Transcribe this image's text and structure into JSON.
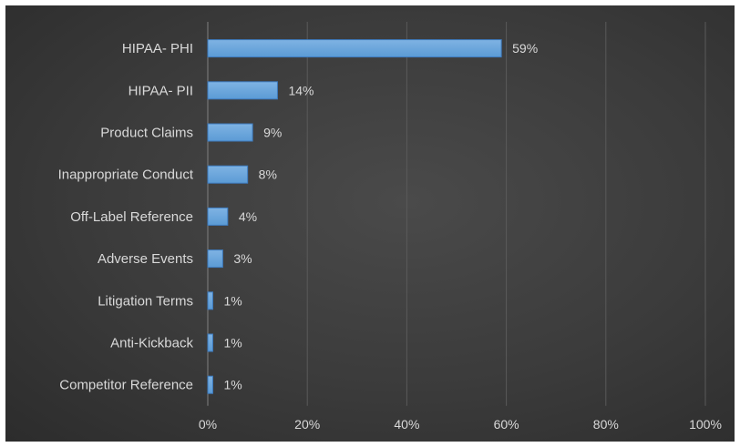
{
  "chart_data": {
    "type": "bar",
    "orientation": "horizontal",
    "categories": [
      "HIPAA- PHI",
      "HIPAA- PII",
      "Product Claims",
      "Inappropriate Conduct",
      "Off-Label Reference",
      "Adverse Events",
      "Litigation Terms",
      "Anti-Kickback",
      "Competitor Reference"
    ],
    "values": [
      59,
      14,
      9,
      8,
      4,
      3,
      1,
      1,
      1
    ],
    "value_labels": [
      "59%",
      "14%",
      "9%",
      "8%",
      "4%",
      "3%",
      "1%",
      "1%",
      "1%"
    ],
    "xlim": [
      0,
      100
    ],
    "x_ticks": [
      0,
      20,
      40,
      60,
      80,
      100
    ],
    "x_tick_labels": [
      "0%",
      "20%",
      "40%",
      "60%",
      "80%",
      "100%"
    ],
    "grid": "vertical",
    "legend": "none",
    "colors": {
      "bar_fill": "#5b9bd5",
      "bar_highlight": "#7fb3e3",
      "bar_stroke": "#3e7cc0",
      "text": "#d9d9d9",
      "background": "#3b3b3b"
    }
  }
}
